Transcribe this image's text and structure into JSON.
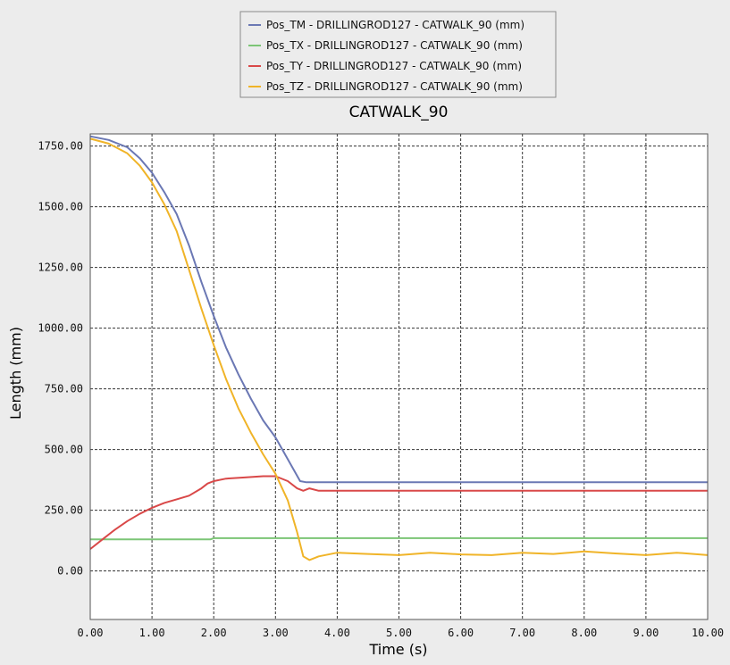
{
  "chart_data": {
    "type": "line",
    "title": "CATWALK_90",
    "xlabel": "Time (s)",
    "ylabel": "Length (mm)",
    "xlim": [
      0,
      10
    ],
    "ylim": [
      -200,
      1800
    ],
    "x_ticks": [
      0,
      1,
      2,
      3,
      4,
      5,
      6,
      7,
      8,
      9,
      10
    ],
    "x_tick_labels": [
      "0.00",
      "1.00",
      "2.00",
      "3.00",
      "4.00",
      "5.00",
      "6.00",
      "7.00",
      "8.00",
      "9.00",
      "10.00"
    ],
    "y_ticks": [
      0,
      250,
      500,
      750,
      1000,
      1250,
      1500,
      1750
    ],
    "y_tick_labels": [
      "0.00",
      "250.00",
      "500.00",
      "750.00",
      "1000.00",
      "1250.00",
      "1500.00",
      "1750.00"
    ],
    "grid": true,
    "legend_position": "top-center",
    "series": [
      {
        "name": "Pos_TM - DRILLINGROD127 - CATWALK_90 (mm)",
        "color": "#6b78b4",
        "x": [
          0,
          0.3,
          0.6,
          0.8,
          1.0,
          1.2,
          1.4,
          1.6,
          1.8,
          2.0,
          2.2,
          2.4,
          2.6,
          2.8,
          3.0,
          3.2,
          3.4,
          3.5,
          4.0,
          5.0,
          6.0,
          7.0,
          8.0,
          9.0,
          10.0
        ],
        "y": [
          1790,
          1775,
          1745,
          1700,
          1640,
          1560,
          1470,
          1340,
          1190,
          1050,
          920,
          810,
          710,
          620,
          550,
          460,
          370,
          365,
          365,
          365,
          365,
          365,
          365,
          365,
          365
        ]
      },
      {
        "name": "Pos_TX - DRILLINGROD127 - CATWALK_90 (mm)",
        "color": "#7cc576",
        "x": [
          0,
          1.0,
          1.95,
          2.0,
          3.0,
          4.0,
          5.0,
          6.0,
          7.0,
          8.0,
          9.0,
          10.0
        ],
        "y": [
          130,
          130,
          130,
          135,
          135,
          135,
          135,
          135,
          135,
          135,
          135,
          135
        ]
      },
      {
        "name": "Pos_TY - DRILLINGROD127 - CATWALK_90 (mm)",
        "color": "#d94848",
        "x": [
          0,
          0.2,
          0.4,
          0.6,
          0.8,
          1.0,
          1.2,
          1.4,
          1.6,
          1.8,
          1.9,
          2.0,
          2.2,
          2.5,
          2.8,
          3.0,
          3.2,
          3.35,
          3.45,
          3.55,
          3.7,
          4.0,
          5.0,
          6.0,
          7.0,
          8.0,
          9.0,
          10.0
        ],
        "y": [
          90,
          130,
          170,
          205,
          235,
          260,
          280,
          295,
          310,
          340,
          360,
          370,
          380,
          385,
          390,
          390,
          370,
          340,
          330,
          340,
          330,
          330,
          330,
          330,
          330,
          330,
          330,
          330
        ]
      },
      {
        "name": "Pos_TZ - DRILLINGROD127 - CATWALK_90 (mm)",
        "color": "#f0b428",
        "x": [
          0,
          0.3,
          0.6,
          0.8,
          1.0,
          1.2,
          1.4,
          1.6,
          1.8,
          2.0,
          2.2,
          2.4,
          2.6,
          2.8,
          3.0,
          3.2,
          3.35,
          3.45,
          3.55,
          3.7,
          4.0,
          4.5,
          5.0,
          5.5,
          6.0,
          6.5,
          7.0,
          7.5,
          8.0,
          8.5,
          9.0,
          9.5,
          10.0
        ],
        "y": [
          1780,
          1760,
          1720,
          1670,
          1600,
          1510,
          1400,
          1240,
          1080,
          930,
          790,
          670,
          570,
          480,
          400,
          290,
          160,
          60,
          45,
          60,
          75,
          70,
          65,
          75,
          68,
          65,
          75,
          70,
          80,
          72,
          65,
          75,
          65
        ]
      }
    ]
  }
}
